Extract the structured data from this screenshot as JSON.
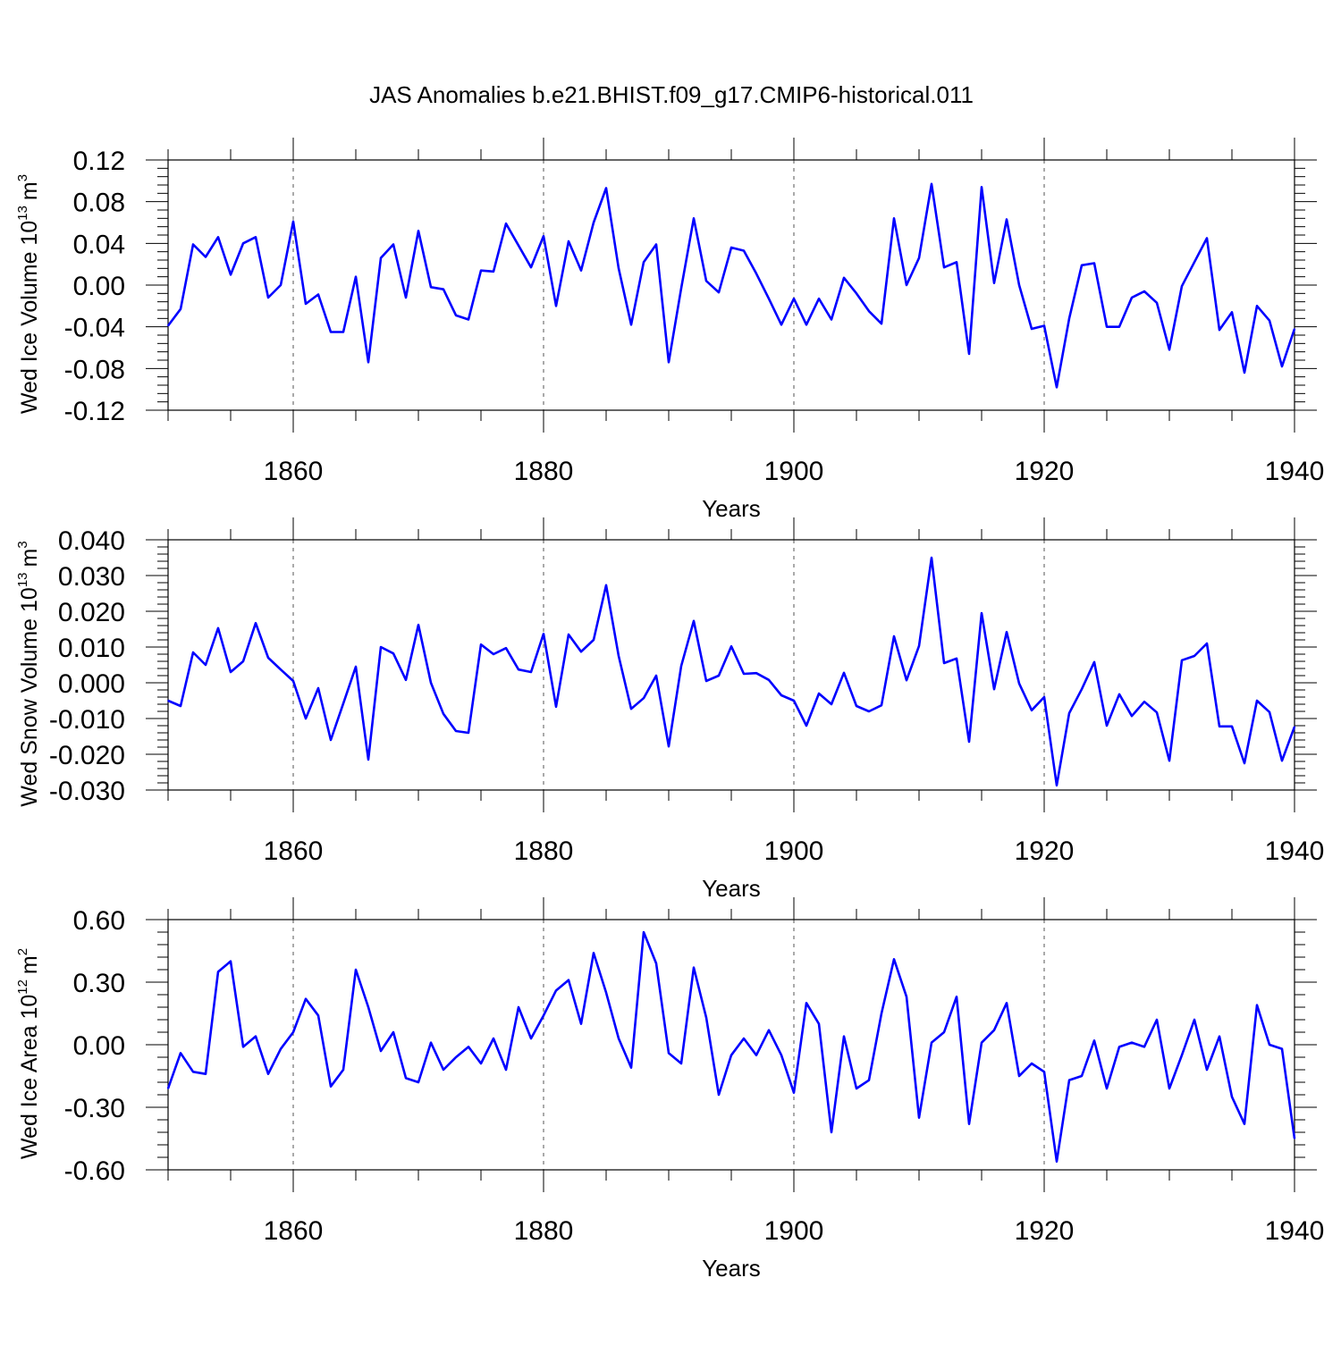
{
  "title": "JAS Anomalies b.e21.BHIST.f09_g17.CMIP6-historical.011",
  "colors": {
    "series": "#0000ff",
    "axis": "#000000",
    "grid": "#555555"
  },
  "chart_data": [
    {
      "type": "line",
      "ylabel": {
        "text": "Wed Ice Volume 10",
        "exp": "13",
        "unit": "m",
        "unit_exp": "3"
      },
      "xlabel": "Years",
      "xlim": [
        1850,
        1940
      ],
      "ylim": [
        -0.12,
        0.12
      ],
      "xticks": [
        "1860",
        "1880",
        "1900",
        "1920",
        "1940"
      ],
      "yticks": [
        {
          "v": 0.12,
          "label": "0.12"
        },
        {
          "v": 0.08,
          "label": "0.08"
        },
        {
          "v": 0.04,
          "label": "0.04"
        },
        {
          "v": 0.0,
          "label": "0.00"
        },
        {
          "v": -0.04,
          "label": "-0.04"
        },
        {
          "v": -0.08,
          "label": "-0.08"
        },
        {
          "v": -0.12,
          "label": "-0.12"
        }
      ],
      "series": [
        {
          "name": "Wed Ice Volume",
          "x_start": 1850,
          "values": [
            -0.039,
            -0.023,
            0.039,
            0.027,
            0.046,
            0.01,
            0.04,
            0.046,
            -0.012,
            0.0,
            0.061,
            -0.018,
            -0.009,
            -0.045,
            -0.045,
            0.008,
            -0.074,
            0.026,
            0.039,
            -0.012,
            0.052,
            -0.002,
            -0.004,
            -0.029,
            -0.033,
            0.014,
            0.013,
            0.059,
            0.038,
            0.017,
            0.047,
            -0.02,
            0.042,
            0.014,
            0.06,
            0.093,
            0.016,
            -0.038,
            0.022,
            0.039,
            -0.074,
            -0.003,
            0.064,
            0.004,
            -0.007,
            0.036,
            0.033,
            0.011,
            -0.013,
            -0.038,
            -0.013,
            -0.038,
            -0.013,
            -0.033,
            0.007,
            -0.008,
            -0.025,
            -0.037,
            0.064,
            0.0,
            0.026,
            0.097,
            0.017,
            0.022,
            -0.066,
            0.094,
            0.002,
            0.063,
            0.0,
            -0.042,
            -0.039,
            -0.098,
            -0.032,
            0.019,
            0.021,
            -0.04,
            -0.04,
            -0.012,
            -0.006,
            -0.017,
            -0.062,
            -0.001,
            0.022,
            0.045,
            -0.043,
            -0.026,
            -0.084,
            -0.02,
            -0.034,
            -0.078,
            -0.042
          ]
        }
      ]
    },
    {
      "type": "line",
      "ylabel": {
        "text": "Wed Snow Volume 10",
        "exp": "13",
        "unit": "m",
        "unit_exp": "3"
      },
      "xlabel": "Years",
      "xlim": [
        1850,
        1940
      ],
      "ylim": [
        -0.03,
        0.04
      ],
      "xticks": [
        "1860",
        "1880",
        "1900",
        "1920",
        "1940"
      ],
      "yticks": [
        {
          "v": 0.04,
          "label": "0.040"
        },
        {
          "v": 0.03,
          "label": "0.030"
        },
        {
          "v": 0.02,
          "label": "0.020"
        },
        {
          "v": 0.01,
          "label": "0.010"
        },
        {
          "v": 0.0,
          "label": "0.000"
        },
        {
          "v": -0.01,
          "label": "-0.010"
        },
        {
          "v": -0.02,
          "label": "-0.020"
        },
        {
          "v": -0.03,
          "label": "-0.030"
        }
      ],
      "series": [
        {
          "name": "Wed Snow Volume",
          "x_start": 1850,
          "values": [
            -0.005,
            -0.0065,
            0.0085,
            0.005,
            0.0153,
            0.003,
            0.006,
            0.0167,
            0.007,
            0.0037,
            0.0005,
            -0.01,
            -0.0015,
            -0.016,
            -0.0058,
            0.0045,
            -0.0215,
            0.01,
            0.0082,
            0.0008,
            0.0162,
            0.0,
            -0.0087,
            -0.0135,
            -0.014,
            0.0107,
            0.008,
            0.0097,
            0.0037,
            0.003,
            0.0137,
            -0.0067,
            0.0135,
            0.0087,
            0.012,
            0.0273,
            0.0075,
            -0.0073,
            -0.0043,
            0.002,
            -0.0178,
            0.0047,
            0.0173,
            0.0005,
            0.002,
            0.0102,
            0.0025,
            0.0027,
            0.0008,
            -0.0035,
            -0.005,
            -0.012,
            -0.003,
            -0.006,
            0.0028,
            -0.0065,
            -0.008,
            -0.0063,
            0.013,
            0.0007,
            0.0103,
            0.035,
            0.0055,
            0.0068,
            -0.0165,
            0.0195,
            -0.0018,
            0.0142,
            -0.0002,
            -0.0077,
            -0.004,
            -0.0287,
            -0.0085,
            -0.0018,
            0.0058,
            -0.012,
            -0.0032,
            -0.0093,
            -0.0053,
            -0.0083,
            -0.0218,
            0.0063,
            0.0075,
            0.011,
            -0.0122,
            -0.0122,
            -0.0225,
            -0.005,
            -0.0082,
            -0.0218,
            -0.0123
          ]
        }
      ]
    },
    {
      "type": "line",
      "ylabel": {
        "text": "Wed Ice Area 10",
        "exp": "12",
        "unit": "m",
        "unit_exp": "2"
      },
      "xlabel": "Years",
      "xlim": [
        1850,
        1940
      ],
      "ylim": [
        -0.6,
        0.6
      ],
      "xticks": [
        "1860",
        "1880",
        "1900",
        "1920",
        "1940"
      ],
      "yticks": [
        {
          "v": 0.6,
          "label": "0.60"
        },
        {
          "v": 0.3,
          "label": "0.30"
        },
        {
          "v": 0.0,
          "label": "0.00"
        },
        {
          "v": -0.3,
          "label": "-0.30"
        },
        {
          "v": -0.6,
          "label": "-0.60"
        }
      ],
      "series": [
        {
          "name": "Wed Ice Area",
          "x_start": 1850,
          "values": [
            -0.21,
            -0.04,
            -0.13,
            -0.14,
            0.35,
            0.4,
            -0.01,
            0.04,
            -0.14,
            -0.02,
            0.06,
            0.22,
            0.14,
            -0.2,
            -0.12,
            0.36,
            0.18,
            -0.03,
            0.06,
            -0.16,
            -0.18,
            0.01,
            -0.12,
            -0.06,
            -0.01,
            -0.09,
            0.03,
            -0.12,
            0.18,
            0.03,
            0.14,
            0.26,
            0.31,
            0.1,
            0.44,
            0.25,
            0.03,
            -0.11,
            0.54,
            0.39,
            -0.04,
            -0.09,
            0.37,
            0.13,
            -0.24,
            -0.05,
            0.03,
            -0.05,
            0.07,
            -0.05,
            -0.23,
            0.2,
            0.1,
            -0.42,
            0.04,
            -0.21,
            -0.17,
            0.15,
            0.41,
            0.23,
            -0.35,
            0.01,
            0.06,
            0.23,
            -0.38,
            0.01,
            0.07,
            0.2,
            -0.15,
            -0.09,
            -0.13,
            -0.56,
            -0.17,
            -0.15,
            0.02,
            -0.21,
            -0.01,
            0.01,
            -0.01,
            0.12,
            -0.21,
            -0.05,
            0.12,
            -0.12,
            0.04,
            -0.25,
            -0.38,
            0.19,
            0.0,
            -0.02,
            -0.45
          ]
        }
      ]
    }
  ]
}
